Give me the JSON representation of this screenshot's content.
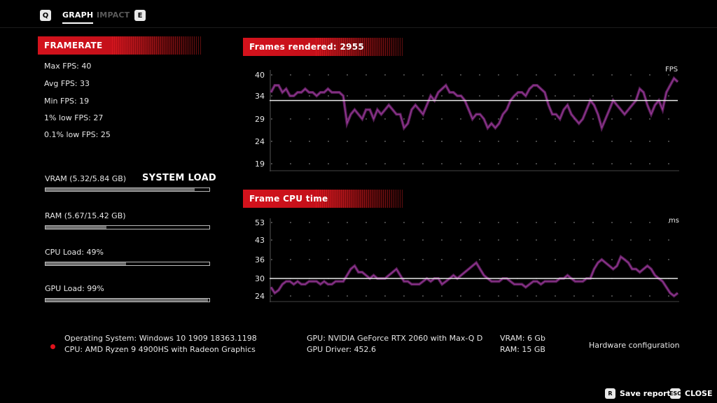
{
  "tabs": {
    "key_prev": "Q",
    "graph": "GRAPH",
    "impact": "IMPACT",
    "key_next": "E"
  },
  "framerate": {
    "header": "FRAMERATE",
    "stats": [
      "Max FPS: 40",
      "Avg FPS: 33",
      "Min FPS: 19",
      "1% low FPS: 27",
      "0.1% low FPS: 25"
    ]
  },
  "system_load": {
    "header": "SYSTEM LOAD",
    "items": [
      {
        "label": "VRAM (5.32/5.84 GB)",
        "fraction": 0.91
      },
      {
        "label": "RAM (5.67/15.42 GB)",
        "fraction": 0.37
      },
      {
        "label": "CPU Load: 49%",
        "fraction": 0.49
      },
      {
        "label": "GPU Load: 99%",
        "fraction": 0.99
      }
    ]
  },
  "fps_chart": {
    "header": "Frames rendered: 2955",
    "unit": "FPS",
    "yticks": [
      "40",
      "34",
      "29",
      "24",
      "19"
    ]
  },
  "cpu_chart": {
    "header": "Frame CPU time",
    "unit": "ms",
    "yticks": [
      "53",
      "43",
      "36",
      "30",
      "24"
    ]
  },
  "chart_data": [
    {
      "type": "line",
      "title": "Frames rendered: 2955",
      "ylabel": "FPS",
      "yticks": [
        40,
        34,
        29,
        24,
        19
      ],
      "ylim": [
        19,
        40
      ],
      "average": 33,
      "color": "#7a2a7a",
      "series": [
        {
          "values": [
            35,
            37,
            37,
            35,
            36,
            34,
            34,
            35,
            35,
            36,
            35,
            35,
            34,
            35,
            35,
            36,
            35,
            35,
            35,
            34,
            28,
            30,
            31,
            30,
            29,
            31,
            31,
            29,
            31,
            30,
            31,
            32,
            31,
            30,
            30,
            27,
            28,
            31,
            32,
            31,
            30,
            32,
            34,
            33,
            35,
            36,
            37,
            35,
            35,
            34,
            34,
            33,
            31,
            29,
            30,
            30,
            29,
            27,
            28,
            27,
            28,
            30,
            31,
            33,
            34,
            35,
            35,
            34,
            36,
            37,
            37,
            36,
            35,
            32,
            30,
            30,
            29,
            31,
            32,
            30,
            29,
            28,
            29,
            31,
            33,
            32,
            30,
            27,
            29,
            31,
            33,
            32,
            31,
            30,
            31,
            32,
            33,
            36,
            35,
            32,
            30,
            32,
            33,
            31,
            35,
            37,
            39,
            38
          ]
        }
      ]
    },
    {
      "type": "line",
      "title": "Frame CPU time",
      "ylabel": "ms",
      "yticks": [
        53,
        43,
        36,
        30,
        24
      ],
      "ylim": [
        24,
        53
      ],
      "average": 30,
      "color": "#7a2a7a",
      "series": [
        {
          "values": [
            27,
            25,
            26,
            28,
            29,
            29,
            28,
            29,
            28,
            28,
            29,
            29,
            29,
            28,
            29,
            28,
            28,
            29,
            29,
            29,
            31,
            33,
            34,
            32,
            32,
            31,
            30,
            31,
            30,
            30,
            30,
            31,
            32,
            33,
            31,
            29,
            29,
            28,
            28,
            28,
            29,
            30,
            29,
            30,
            30,
            28,
            29,
            30,
            31,
            30,
            31,
            32,
            33,
            34,
            35,
            33,
            31,
            30,
            29,
            29,
            29,
            30,
            30,
            29,
            28,
            28,
            28,
            27,
            28,
            29,
            29,
            28,
            29,
            29,
            29,
            29,
            30,
            30,
            31,
            30,
            29,
            29,
            29,
            30,
            30,
            33,
            35,
            36,
            35,
            34,
            33,
            34,
            37,
            36,
            35,
            33,
            33,
            32,
            33,
            34,
            33,
            31,
            30,
            29,
            27,
            25,
            24,
            25
          ]
        }
      ]
    }
  ],
  "footer": {
    "os": "Operating System: Windows 10 1909 18363.1198",
    "cpu": "CPU: AMD Ryzen 9 4900HS with Radeon Graphics",
    "gpu": "GPU: NVIDIA GeForce RTX 2060 with Max-Q D",
    "driver": "GPU Driver: 452.6",
    "vram": "VRAM: 6 Gb",
    "ram": "RAM: 15 GB",
    "hardware_config": "Hardware configuration"
  },
  "actions": {
    "save_key": "R",
    "save_label": "Save report",
    "close_key": "ESC",
    "close_label": "CLOSE"
  },
  "colors": {
    "accent_red": "#d4121c",
    "line_purple": "#7a2a7a"
  }
}
